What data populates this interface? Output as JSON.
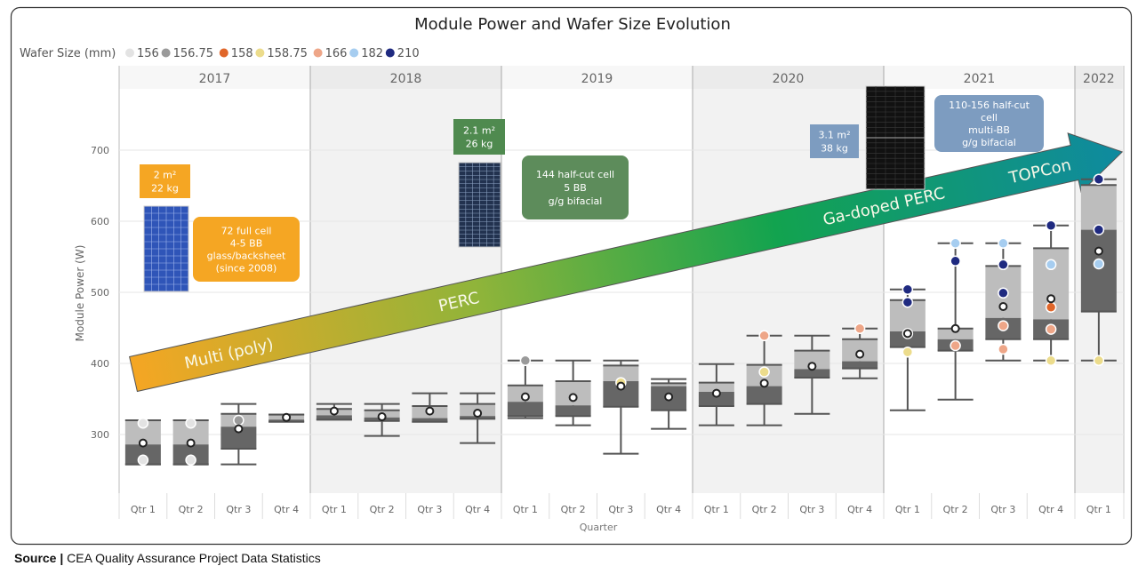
{
  "chart_data": {
    "type": "box",
    "title": "Module Power and Wafer Size Evolution",
    "legend": {
      "title": "Wafer Size (mm)",
      "placement": "top-left",
      "items": [
        {
          "label": "156",
          "color": "#e3e3e3"
        },
        {
          "label": "156.75",
          "color": "#9a9a9a"
        },
        {
          "label": "158",
          "color": "#e0662a"
        },
        {
          "label": "158.75",
          "color": "#ecdc8c"
        },
        {
          "label": "166",
          "color": "#eea688"
        },
        {
          "label": "182",
          "color": "#a6cdf0"
        },
        {
          "label": "210",
          "color": "#1f2a80"
        }
      ]
    },
    "ylabel": "Module Power (W)",
    "xlabel": "Quarter",
    "ylim": [
      250,
      750
    ],
    "yticks": [
      "300",
      "400",
      "500",
      "600",
      "700"
    ],
    "grid": true,
    "years": [
      "2017",
      "2018",
      "2019",
      "2020",
      "2021",
      "2022"
    ],
    "quarters": [
      {
        "year": "2017",
        "label": "Qtr 1",
        "min": 258,
        "q1": 258,
        "median": 286,
        "q3": 320,
        "max": 320,
        "mean": 288
      },
      {
        "year": "2017",
        "label": "Qtr 2",
        "min": 258,
        "q1": 258,
        "median": 286,
        "q3": 320,
        "max": 320,
        "mean": 288
      },
      {
        "year": "2017",
        "label": "Qtr 3",
        "min": 258,
        "q1": 280,
        "median": 311,
        "q3": 329,
        "max": 343,
        "mean": 308
      },
      {
        "year": "2017",
        "label": "Qtr 4",
        "min": 318,
        "q1": 318,
        "median": 321,
        "q3": 328,
        "max": 328,
        "mean": 324
      },
      {
        "year": "2018",
        "label": "Qtr 1",
        "min": 321,
        "q1": 321,
        "median": 327,
        "q3": 336,
        "max": 343,
        "mean": 333
      },
      {
        "year": "2018",
        "label": "Qtr 2",
        "min": 298,
        "q1": 319,
        "median": 324,
        "q3": 334,
        "max": 343,
        "mean": 325
      },
      {
        "year": "2018",
        "label": "Qtr 3",
        "min": 318,
        "q1": 318,
        "median": 323,
        "q3": 340,
        "max": 358,
        "mean": 333
      },
      {
        "year": "2018",
        "label": "Qtr 4",
        "min": 288,
        "q1": 322,
        "median": 326,
        "q3": 343,
        "max": 358,
        "mean": 330
      },
      {
        "year": "2019",
        "label": "Qtr 1",
        "min": 323,
        "q1": 326,
        "median": 346,
        "q3": 369,
        "max": 404,
        "mean": 353
      },
      {
        "year": "2019",
        "label": "Qtr 2",
        "min": 313,
        "q1": 326,
        "median": 341,
        "q3": 375,
        "max": 404,
        "mean": 352
      },
      {
        "year": "2019",
        "label": "Qtr 3",
        "min": 273,
        "q1": 339,
        "median": 375,
        "q3": 397,
        "max": 404,
        "mean": 368
      },
      {
        "year": "2019",
        "label": "Qtr 4",
        "min": 308,
        "q1": 334,
        "median": 368,
        "q3": 372,
        "max": 378,
        "mean": 353
      },
      {
        "year": "2020",
        "label": "Qtr 1",
        "min": 313,
        "q1": 340,
        "median": 360,
        "q3": 373,
        "max": 399,
        "mean": 358
      },
      {
        "year": "2020",
        "label": "Qtr 2",
        "min": 313,
        "q1": 343,
        "median": 368,
        "q3": 398,
        "max": 439,
        "mean": 372
      },
      {
        "year": "2020",
        "label": "Qtr 3",
        "min": 329,
        "q1": 380,
        "median": 392,
        "q3": 418,
        "max": 439,
        "mean": 396
      },
      {
        "year": "2020",
        "label": "Qtr 4",
        "min": 379,
        "q1": 393,
        "median": 403,
        "q3": 434,
        "max": 449,
        "mean": 413
      },
      {
        "year": "2021",
        "label": "Qtr 1",
        "min": 334,
        "q1": 423,
        "median": 445,
        "q3": 489,
        "max": 504,
        "mean": 442
      },
      {
        "year": "2021",
        "label": "Qtr 2",
        "min": 349,
        "q1": 418,
        "median": 434,
        "q3": 449,
        "max": 569,
        "mean": 449
      },
      {
        "year": "2021",
        "label": "Qtr 3",
        "min": 404,
        "q1": 434,
        "median": 464,
        "q3": 537,
        "max": 569,
        "mean": 480
      },
      {
        "year": "2021",
        "label": "Qtr 4",
        "min": 404,
        "q1": 434,
        "median": 462,
        "q3": 562,
        "max": 594,
        "mean": 491
      },
      {
        "year": "2022",
        "label": "Qtr 1",
        "min": 404,
        "q1": 473,
        "median": 588,
        "q3": 651,
        "max": 659,
        "mean": 558
      }
    ],
    "points": [
      {
        "q": 0,
        "wafer": "156",
        "value": 316
      },
      {
        "q": 0,
        "wafer": "156",
        "value": 264
      },
      {
        "q": 1,
        "wafer": "156",
        "value": 316
      },
      {
        "q": 1,
        "wafer": "156",
        "value": 264
      },
      {
        "q": 2,
        "wafer": "156.75",
        "value": 320
      },
      {
        "q": 8,
        "wafer": "156.75",
        "value": 404
      },
      {
        "q": 10,
        "wafer": "158.75",
        "value": 373
      },
      {
        "q": 13,
        "wafer": "158.75",
        "value": 388
      },
      {
        "q": 13,
        "wafer": "166",
        "value": 439
      },
      {
        "q": 15,
        "wafer": "166",
        "value": 449
      },
      {
        "q": 16,
        "wafer": "210",
        "value": 504
      },
      {
        "q": 16,
        "wafer": "210",
        "value": 486
      },
      {
        "q": 16,
        "wafer": "166",
        "value": 442
      },
      {
        "q": 16,
        "wafer": "158.75",
        "value": 416
      },
      {
        "q": 17,
        "wafer": "182",
        "value": 569
      },
      {
        "q": 17,
        "wafer": "210",
        "value": 544
      },
      {
        "q": 17,
        "wafer": "166",
        "value": 425
      },
      {
        "q": 18,
        "wafer": "182",
        "value": 569
      },
      {
        "q": 18,
        "wafer": "210",
        "value": 539
      },
      {
        "q": 18,
        "wafer": "210",
        "value": 499
      },
      {
        "q": 18,
        "wafer": "166",
        "value": 453
      },
      {
        "q": 18,
        "wafer": "166",
        "value": 420
      },
      {
        "q": 19,
        "wafer": "210",
        "value": 594
      },
      {
        "q": 19,
        "wafer": "182",
        "value": 539
      },
      {
        "q": 19,
        "wafer": "158",
        "value": 479
      },
      {
        "q": 19,
        "wafer": "166",
        "value": 448
      },
      {
        "q": 19,
        "wafer": "158.75",
        "value": 404
      },
      {
        "q": 20,
        "wafer": "210",
        "value": 659
      },
      {
        "q": 20,
        "wafer": "210",
        "value": 588
      },
      {
        "q": 20,
        "wafer": "182",
        "value": 540
      },
      {
        "q": 20,
        "wafer": "158.75",
        "value": 404
      }
    ],
    "annotations": {
      "arrow_labels": [
        "Multi (poly)",
        "PERC",
        "Ga-doped PERC",
        "TOPCon"
      ],
      "spec_2017": [
        "2 m²",
        "22 kg"
      ],
      "desc_2017": [
        "72 full cell",
        "4-5 BB",
        "glass/backsheet",
        "(since 2008)"
      ],
      "spec_2018": [
        "2.1 m²",
        "26 kg"
      ],
      "desc_2019": [
        "144 half-cut cell",
        "5 BB",
        "g/g bifacial"
      ],
      "spec_2020": [
        "3.1 m²",
        "38 kg"
      ],
      "desc_2021": [
        "110-156 half-cut",
        "cell",
        "multi-BB",
        "g/g bifacial"
      ]
    }
  },
  "source": {
    "label": "Source |",
    "text": "CEA Quality Assurance Project Data Statistics"
  }
}
